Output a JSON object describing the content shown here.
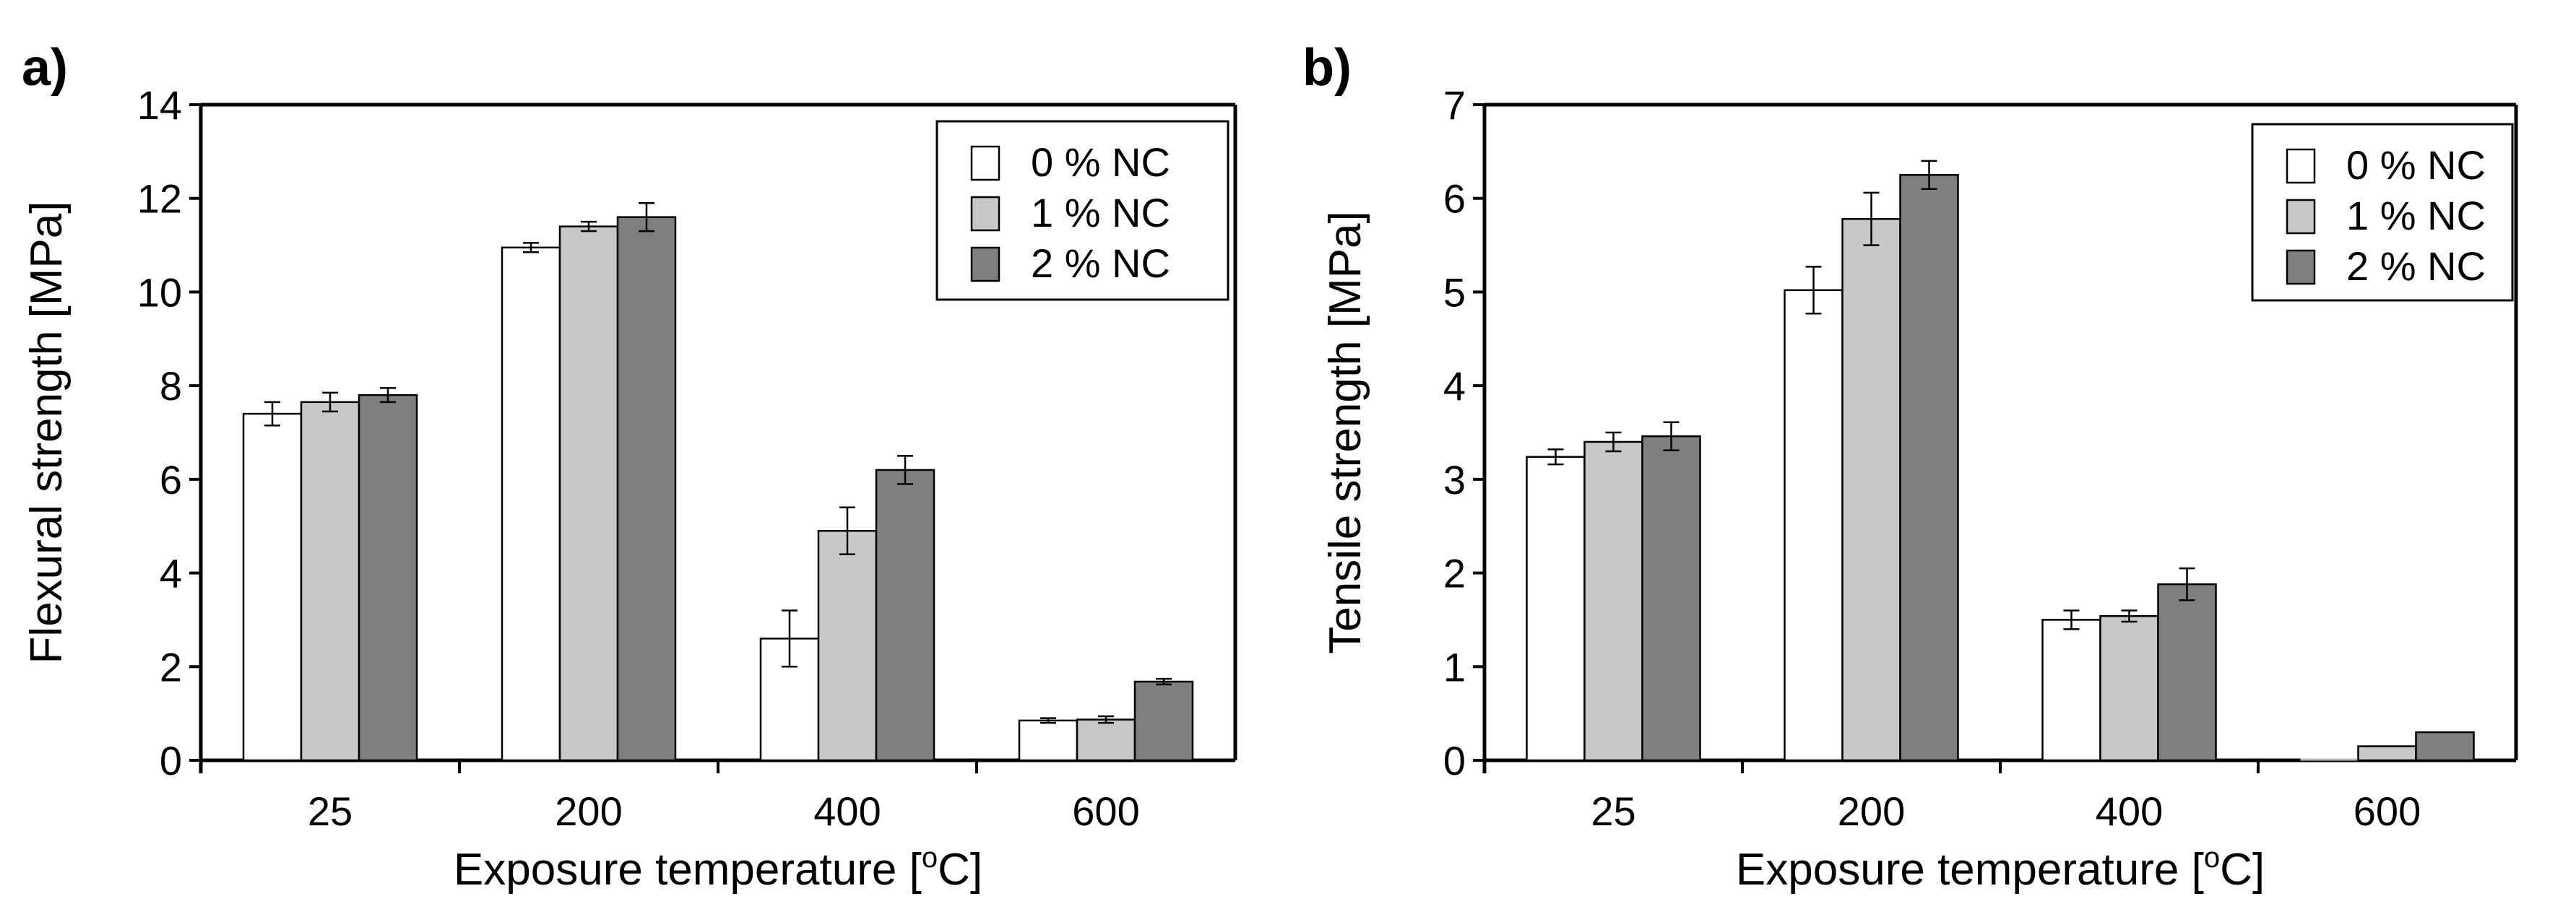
{
  "chart_data": [
    {
      "type": "bar",
      "panel_label": "a)",
      "title": "",
      "xlabel": "Exposure temperature [",
      "xlabel_sup": "o",
      "xlabel_unit": "C]",
      "ylabel": "Flexural strength [MPa]",
      "ylim": [
        0,
        14
      ],
      "yticks": [
        0,
        2,
        4,
        6,
        8,
        10,
        12,
        14
      ],
      "categories": [
        "25",
        "200",
        "400",
        "600"
      ],
      "legend_position": "top-right",
      "series": [
        {
          "name": "0 % NC",
          "color": "#ffffff",
          "values": [
            7.4,
            10.95,
            2.6,
            0.85
          ],
          "errors": [
            0.25,
            0.1,
            0.6,
            0.05
          ]
        },
        {
          "name": "1 % NC",
          "color": "#c8c8c8",
          "values": [
            7.65,
            11.4,
            4.9,
            0.87
          ],
          "errors": [
            0.2,
            0.1,
            0.5,
            0.07
          ]
        },
        {
          "name": "2 % NC",
          "color": "#7f7f7f",
          "values": [
            7.8,
            11.6,
            6.2,
            1.68
          ],
          "errors": [
            0.15,
            0.3,
            0.3,
            0.06
          ]
        }
      ]
    },
    {
      "type": "bar",
      "panel_label": "b)",
      "title": "",
      "xlabel": "Exposure temperature [",
      "xlabel_sup": "o",
      "xlabel_unit": "C]",
      "ylabel": "Tensile strength [MPa]",
      "ylim": [
        0,
        7
      ],
      "yticks": [
        0,
        1,
        2,
        3,
        4,
        5,
        6,
        7
      ],
      "categories": [
        "25",
        "200",
        "400",
        "600"
      ],
      "legend_position": "top-right",
      "series": [
        {
          "name": "0 % NC",
          "color": "#ffffff",
          "values": [
            3.24,
            5.02,
            1.5,
            0.0
          ],
          "errors": [
            0.08,
            0.25,
            0.1,
            0.0
          ]
        },
        {
          "name": "1 % NC",
          "color": "#c8c8c8",
          "values": [
            3.4,
            5.78,
            1.54,
            0.15
          ],
          "errors": [
            0.1,
            0.28,
            0.06,
            0.0
          ]
        },
        {
          "name": "2 % NC",
          "color": "#7f7f7f",
          "values": [
            3.46,
            6.25,
            1.88,
            0.3
          ],
          "errors": [
            0.15,
            0.15,
            0.17,
            0.0
          ]
        }
      ]
    }
  ]
}
